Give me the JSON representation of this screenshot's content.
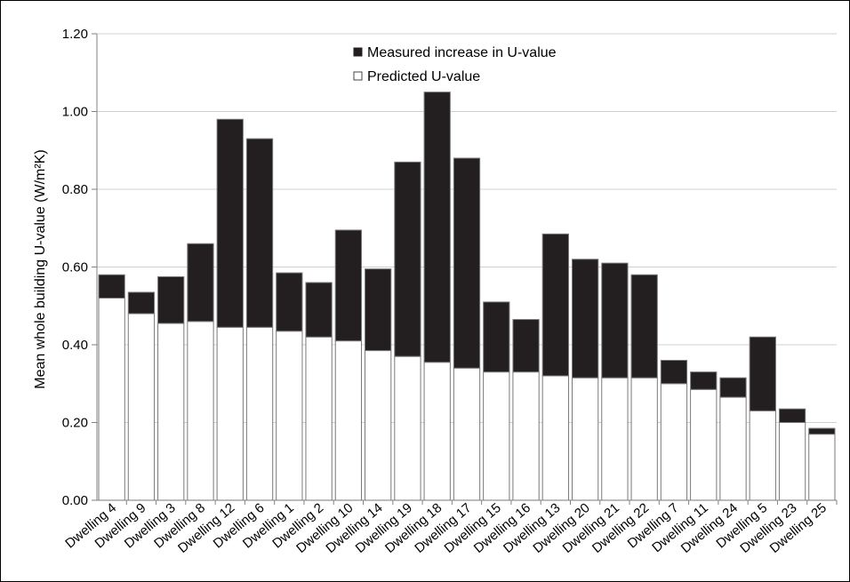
{
  "chart_data": {
    "type": "bar",
    "stacked": true,
    "ylabel": "Mean whole building U-value (W/m²K)",
    "ylim": [
      0,
      1.2
    ],
    "yticks": [
      "0.00",
      "0.20",
      "0.40",
      "0.60",
      "0.80",
      "1.00",
      "1.20"
    ],
    "grid": true,
    "legend_placement": "top-center",
    "categories": [
      "Dwelling 4",
      "Dwelling 9",
      "Dwelling 3",
      "Dwelling 8",
      "Dwelling 12",
      "Dwelling 6",
      "Dwelling 1",
      "Dwelling 2",
      "Dwelling 10",
      "Dwelling 14",
      "Dwelling 19",
      "Dwelling 18",
      "Dwelling 17",
      "Dwelling 15",
      "Dwelling 16",
      "Dwelling 13",
      "Dwelling 20",
      "Dwelling 21",
      "Dwelling 22",
      "Dwelling 7",
      "Dwelling 11",
      "Dwelling 24",
      "Dwelling 5",
      "Dwelling 23",
      "Dwelling 25"
    ],
    "series": [
      {
        "name": "Predicted U-value",
        "color": "#ffffff",
        "values": [
          0.52,
          0.48,
          0.455,
          0.46,
          0.445,
          0.445,
          0.435,
          0.42,
          0.41,
          0.385,
          0.37,
          0.355,
          0.34,
          0.33,
          0.33,
          0.32,
          0.315,
          0.315,
          0.315,
          0.3,
          0.285,
          0.265,
          0.23,
          0.2,
          0.17
        ]
      },
      {
        "name": "Measured increase in U-value",
        "color": "#231f20",
        "values": [
          0.06,
          0.055,
          0.12,
          0.2,
          0.535,
          0.485,
          0.15,
          0.14,
          0.285,
          0.21,
          0.5,
          0.695,
          0.54,
          0.18,
          0.135,
          0.365,
          0.305,
          0.295,
          0.265,
          0.06,
          0.045,
          0.05,
          0.19,
          0.035,
          0.015
        ]
      }
    ]
  }
}
